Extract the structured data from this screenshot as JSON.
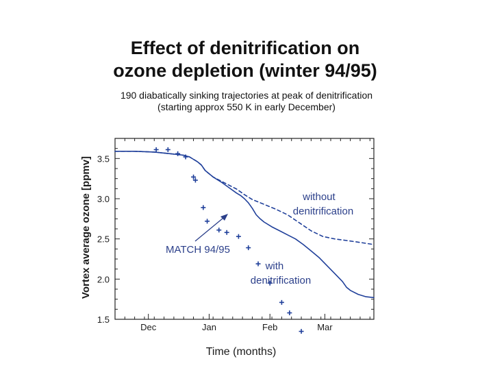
{
  "chart_data": {
    "type": "line",
    "title": "Effect of denitrification on ozone depletion (winter 94/95)",
    "title_lines": [
      "Effect of denitrification on",
      "ozone depletion (winter 94/95)"
    ],
    "subtitle_lines": [
      "190 diabatically sinking trajectories at peak of denitrification",
      "(starting approx 550 K in early December)"
    ],
    "xlabel": "Time (months)",
    "ylabel": "Vortex average ozone [ppmv]",
    "x_unit": "days from Nov 15",
    "xlim": [
      0,
      132
    ],
    "ylim": [
      1.5,
      3.75
    ],
    "x_ticks": [
      {
        "label": "Dec",
        "x": 17
      },
      {
        "label": "Jan",
        "x": 48
      },
      {
        "label": "Feb",
        "x": 79
      },
      {
        "label": "Mar",
        "x": 107
      }
    ],
    "y_ticks": [
      {
        "label": "1.5",
        "y": 1.5
      },
      {
        "label": "2.0",
        "y": 2.0
      },
      {
        "label": "2.5",
        "y": 2.5
      },
      {
        "label": "3.0",
        "y": 3.0
      },
      {
        "label": "3.5",
        "y": 3.5
      }
    ],
    "grid": false,
    "series": [
      {
        "name": "with denitrification",
        "style": "solid",
        "color": "#1f3f9a",
        "x": [
          0,
          10,
          20,
          28,
          32,
          35,
          38,
          40,
          42,
          44,
          46,
          50,
          54,
          58,
          62,
          64,
          66,
          68,
          70,
          72,
          74,
          76,
          80,
          84,
          88,
          92,
          96,
          100,
          104,
          108,
          112,
          116,
          118,
          120,
          124,
          128,
          132
        ],
        "y": [
          3.59,
          3.59,
          3.58,
          3.56,
          3.55,
          3.54,
          3.52,
          3.49,
          3.46,
          3.42,
          3.35,
          3.27,
          3.21,
          3.14,
          3.07,
          3.04,
          3.0,
          2.95,
          2.88,
          2.8,
          2.75,
          2.71,
          2.65,
          2.6,
          2.55,
          2.5,
          2.43,
          2.35,
          2.27,
          2.17,
          2.07,
          1.97,
          1.9,
          1.86,
          1.81,
          1.78,
          1.77
        ]
      },
      {
        "name": "without denitrification",
        "style": "dashed",
        "color": "#1f3f9a",
        "x": [
          0,
          10,
          20,
          28,
          32,
          35,
          38,
          40,
          42,
          44,
          46,
          50,
          54,
          58,
          62,
          66,
          70,
          76,
          82,
          88,
          94,
          100,
          106,
          112,
          118,
          124,
          132
        ],
        "y": [
          3.59,
          3.59,
          3.58,
          3.56,
          3.55,
          3.54,
          3.52,
          3.49,
          3.46,
          3.42,
          3.35,
          3.27,
          3.22,
          3.17,
          3.12,
          3.05,
          2.99,
          2.93,
          2.87,
          2.8,
          2.7,
          2.6,
          2.53,
          2.5,
          2.48,
          2.46,
          2.43
        ]
      },
      {
        "name": "MATCH 94/95",
        "style": "markers",
        "marker": "+",
        "color": "#1f3f9a",
        "x": [
          21,
          27,
          32,
          36,
          40,
          41,
          45,
          47,
          53,
          57,
          63,
          68,
          73,
          79,
          85,
          89,
          95
        ],
        "y": [
          3.61,
          3.61,
          3.56,
          3.52,
          3.27,
          3.23,
          2.89,
          2.72,
          2.61,
          2.58,
          2.53,
          2.39,
          2.19,
          1.95,
          1.71,
          1.58,
          1.35
        ]
      }
    ],
    "annotations": [
      {
        "lines": [
          "without",
          "denitrification"
        ],
        "target_series": "without denitrification"
      },
      {
        "lines": [
          "with",
          "denitrification"
        ],
        "target_series": "with denitrification"
      },
      {
        "lines": [
          "MATCH 94/95"
        ],
        "target_series": "MATCH 94/95",
        "arrow": true
      }
    ]
  }
}
